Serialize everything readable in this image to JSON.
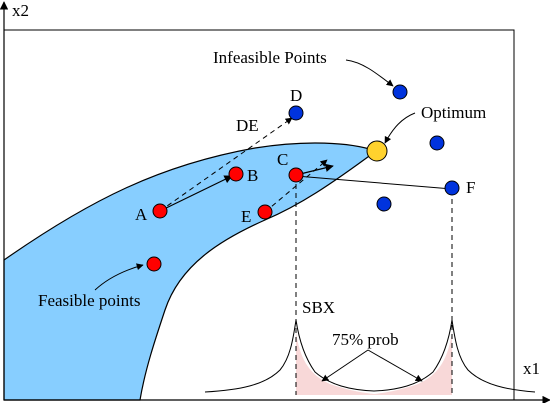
{
  "axes": {
    "x_label": "x1",
    "y_label": "x2"
  },
  "labels": {
    "infeasible_points": "Infeasible Points",
    "optimum": "Optimum",
    "feasible_points": "Feasible points",
    "de": "DE",
    "sbx": "SBX",
    "prob": "75% prob"
  },
  "points": {
    "a": "A",
    "b": "B",
    "c": "C",
    "d": "D",
    "e": "E",
    "f": "F"
  },
  "colors": {
    "feasible_region": "#87ceff",
    "feasible_point": "#ff0000",
    "infeasible_point": "#0033dd",
    "optimum": "#ffd22e",
    "sbx_fill": "#f8d8d8",
    "stroke": "#000000"
  }
}
